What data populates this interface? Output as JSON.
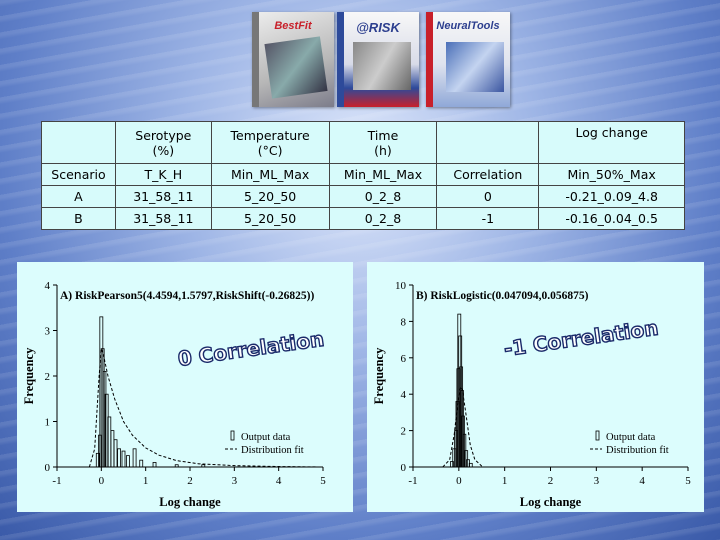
{
  "products": [
    {
      "name": "BestFit",
      "color": "#c9c9c9"
    },
    {
      "name": "@RISK",
      "color": "#3a4fa0"
    },
    {
      "name": "NeuralTools",
      "color": "#c8202a"
    }
  ],
  "table": {
    "header1": [
      "",
      "Serotype\n(%)",
      "Temperature\n(°C)",
      "Time\n(h)",
      "",
      "Log change"
    ],
    "header2": [
      "Scenario",
      "T_K_H",
      "Min_ML_Max",
      "Min_ML_Max",
      "Correlation",
      "Min_50%_Max"
    ],
    "rows": [
      [
        "A",
        "31_58_11",
        "5_20_50",
        "0_2_8",
        "0",
        "-0.21_0.09_4.8"
      ],
      [
        "B",
        "31_58_11",
        "5_20_50",
        "0_2_8",
        "-1",
        "-0.16_0.04_0.5"
      ]
    ]
  },
  "chart_data": [
    {
      "type": "bar",
      "title": "A) RiskPearson5(4.4594,1.5797,RiskShift(-0.26825))",
      "annotation": "0 Correlation",
      "xlabel": "Log change",
      "ylabel": "Frequency",
      "xlim": [
        -1,
        5
      ],
      "ylim": [
        0,
        4
      ],
      "xticks": [
        "-1",
        "0",
        "1",
        "2",
        "3",
        "4",
        "5"
      ],
      "yticks": [
        "0",
        "1",
        "2",
        "3",
        "4"
      ],
      "legend": [
        "Output data",
        "Distribution fit"
      ],
      "legend_position": "bottom-right",
      "histogram": {
        "x": [
          -0.08,
          -0.03,
          0.0,
          0.03,
          0.07,
          0.12,
          0.18,
          0.25,
          0.32,
          0.4,
          0.5,
          0.6,
          0.75,
          0.9,
          1.2,
          1.7,
          2.3
        ],
        "y": [
          0.3,
          0.7,
          3.3,
          2.6,
          2.1,
          1.6,
          1.1,
          0.8,
          0.6,
          0.4,
          0.35,
          0.25,
          0.4,
          0.15,
          0.1,
          0.05,
          0.05
        ]
      },
      "fit_curve": {
        "x": [
          -0.27,
          -0.15,
          -0.05,
          0.0,
          0.05,
          0.15,
          0.3,
          0.5,
          0.7,
          1.0,
          1.3,
          1.7,
          2.2,
          3.0,
          4.0,
          5.0
        ],
        "y": [
          0.0,
          0.4,
          2.0,
          2.6,
          2.45,
          2.0,
          1.5,
          1.0,
          0.7,
          0.42,
          0.26,
          0.14,
          0.07,
          0.03,
          0.01,
          0.0
        ]
      }
    },
    {
      "type": "bar",
      "title": "B) RiskLogistic(0.047094,0.056875)",
      "annotation": "-1 Correlation",
      "xlabel": "Log change",
      "ylabel": "Frequency",
      "xlim": [
        -1,
        5
      ],
      "ylim": [
        0,
        10
      ],
      "xticks": [
        "-1",
        "0",
        "1",
        "2",
        "3",
        "4",
        "5"
      ],
      "yticks": [
        "0",
        "2",
        "4",
        "6",
        "8",
        "10"
      ],
      "legend": [
        "Output data",
        "Distribution fit"
      ],
      "legend_position": "bottom-right",
      "histogram": {
        "x": [
          -0.15,
          -0.1,
          -0.06,
          -0.03,
          -0.01,
          0.01,
          0.03,
          0.05,
          0.07,
          0.09,
          0.12,
          0.16,
          0.2,
          0.26
        ],
        "y": [
          0.3,
          1.0,
          2.0,
          3.6,
          5.4,
          8.4,
          7.2,
          5.5,
          4.2,
          2.8,
          1.8,
          0.9,
          0.4,
          0.2
        ]
      },
      "fit_curve": {
        "x": [
          -0.35,
          -0.2,
          -0.1,
          -0.02,
          0.02,
          0.047,
          0.08,
          0.15,
          0.25,
          0.35,
          0.5
        ],
        "y": [
          0.0,
          0.4,
          1.8,
          3.6,
          4.3,
          4.4,
          4.2,
          3.0,
          1.2,
          0.4,
          0.05
        ]
      }
    }
  ]
}
